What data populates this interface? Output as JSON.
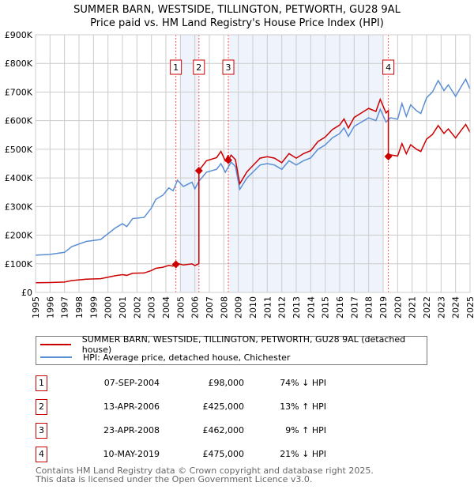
{
  "chart_data": {
    "type": "line",
    "title": "SUMMER BARN, WESTSIDE, TILLINGTON, PETWORTH, GU28 9AL",
    "subtitle": "Price paid vs. HM Land Registry's House Price Index (HPI)",
    "xlim": [
      1995,
      2025
    ],
    "ylim": [
      0,
      900000
    ],
    "y_ticks": [
      {
        "v": 0,
        "label": "£0"
      },
      {
        "v": 100000,
        "label": "£100K"
      },
      {
        "v": 200000,
        "label": "£200K"
      },
      {
        "v": 300000,
        "label": "£300K"
      },
      {
        "v": 400000,
        "label": "£400K"
      },
      {
        "v": 500000,
        "label": "£500K"
      },
      {
        "v": 600000,
        "label": "£600K"
      },
      {
        "v": 700000,
        "label": "£700K"
      },
      {
        "v": 800000,
        "label": "£800K"
      },
      {
        "v": 900000,
        "label": "£900K"
      }
    ],
    "x_ticks": [
      "1995",
      "1996",
      "1997",
      "1998",
      "1999",
      "2000",
      "2001",
      "2002",
      "2003",
      "2004",
      "2005",
      "2006",
      "2007",
      "2008",
      "2009",
      "2010",
      "2011",
      "2012",
      "2013",
      "2014",
      "2015",
      "2016",
      "2017",
      "2018",
      "2019",
      "2020",
      "2021",
      "2022",
      "2023",
      "2024",
      "2025"
    ],
    "grid": true,
    "colors": {
      "property": "#cc0000",
      "hpi": "#5b8fd4",
      "shade": "#eef3fc"
    },
    "series": [
      {
        "name": "SUMMER BARN, WESTSIDE, TILLINGTON, PETWORTH, GU28 9AL (detached house)",
        "derived_from": "hpi_scaled_to_sales"
      },
      {
        "name": "HPI: Average price, detached house, Chichester",
        "x": [
          1995,
          1996,
          1997,
          1997.5,
          1998.5,
          1999.5,
          2000,
          2000.5,
          2001,
          2001.3,
          2001.7,
          2002.5,
          2003,
          2003.3,
          2003.8,
          2004.2,
          2004.5,
          2004.8,
          2005.2,
          2005.8,
          2006.0,
          2006.3,
          2006.8,
          2007.5,
          2007.8,
          2008.1,
          2008.5,
          2008.8,
          2009.1,
          2009.6,
          2010,
          2010.5,
          2011,
          2011.5,
          2012,
          2012.5,
          2013,
          2013.5,
          2014,
          2014.5,
          2015,
          2015.5,
          2016,
          2016.3,
          2016.6,
          2017,
          2017.5,
          2018,
          2018.5,
          2018.8,
          2019.2,
          2019.5,
          2020,
          2020.3,
          2020.6,
          2020.9,
          2021.3,
          2021.6,
          2022,
          2022.4,
          2022.8,
          2023.2,
          2023.5,
          2024,
          2024.4,
          2024.7,
          2025
        ],
        "y": [
          130000,
          133000,
          140000,
          160000,
          178000,
          185000,
          205000,
          225000,
          240000,
          230000,
          258000,
          262000,
          295000,
          325000,
          340000,
          365000,
          355000,
          392000,
          370000,
          385000,
          362000,
          390000,
          420000,
          430000,
          450000,
          420000,
          455000,
          440000,
          360000,
          400000,
          420000,
          445000,
          450000,
          445000,
          430000,
          460000,
          445000,
          460000,
          470000,
          500000,
          515000,
          540000,
          555000,
          575000,
          545000,
          580000,
          595000,
          610000,
          600000,
          640000,
          595000,
          610000,
          605000,
          660000,
          615000,
          655000,
          635000,
          625000,
          680000,
          700000,
          740000,
          705000,
          725000,
          685000,
          720000,
          745000,
          710000
        ]
      }
    ],
    "sales": [
      {
        "label": "1",
        "t": 2004.69,
        "date": "07-SEP-2004",
        "price": 98000,
        "price_text": "£98,000",
        "hpi_text": "74% ↓ HPI"
      },
      {
        "label": "2",
        "t": 2006.28,
        "date": "13-APR-2006",
        "price": 425000,
        "price_text": "£425,000",
        "hpi_text": "13% ↑ HPI"
      },
      {
        "label": "3",
        "t": 2008.31,
        "date": "23-APR-2008",
        "price": 462000,
        "price_text": "£462,000",
        "hpi_text": "9% ↑ HPI"
      },
      {
        "label": "4",
        "t": 2019.36,
        "date": "10-MAY-2019",
        "price": 475000,
        "price_text": "£475,000",
        "hpi_text": "21% ↓ HPI"
      }
    ],
    "shaded_periods": [
      [
        2005,
        2006.28
      ],
      [
        2008.31,
        2019.0
      ]
    ],
    "legend": {
      "position": "below",
      "property": "SUMMER BARN, WESTSIDE, TILLINGTON, PETWORTH, GU28 9AL (detached house)",
      "hpi": "HPI: Average price, detached house, Chichester"
    }
  },
  "footer": [
    "Contains HM Land Registry data © Crown copyright and database right 2025.",
    "This data is licensed under the Open Government Licence v3.0."
  ]
}
